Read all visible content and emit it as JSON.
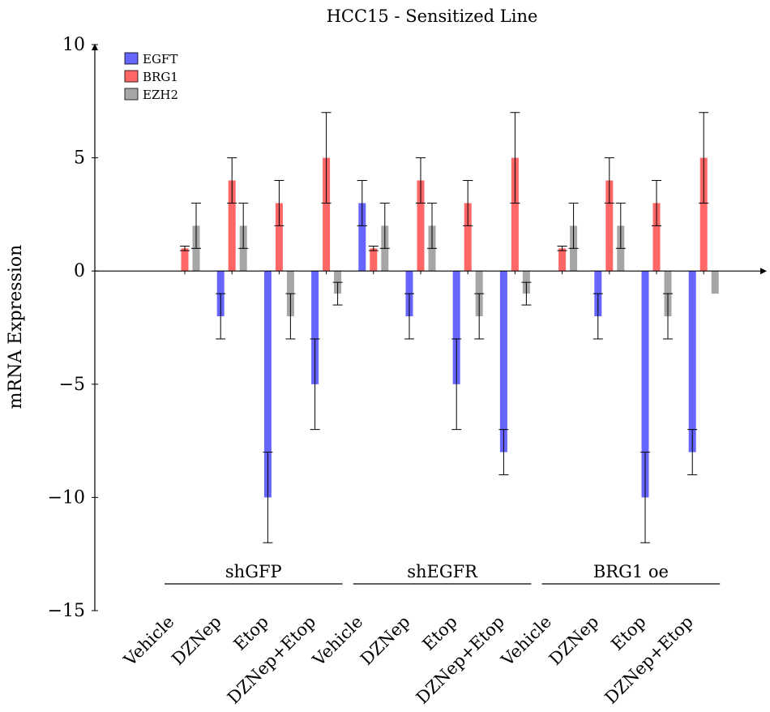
{
  "chart_data": {
    "type": "bar",
    "title": "HCC15 - Sensitized Line",
    "xlabel": "",
    "ylabel": "mRNA Expression",
    "ylim": [
      -15,
      10
    ],
    "yticks": [
      -15,
      -10,
      -5,
      0,
      5,
      10
    ],
    "ytick_labels": [
      "−15",
      "−10",
      "−5",
      "0",
      "5",
      "10"
    ],
    "grid": false,
    "legend_position": "top-left",
    "groups": [
      {
        "label": "shGFP",
        "categories": [
          "Vehicle",
          "DZNep",
          "Etop",
          "DZNep+Etop"
        ]
      },
      {
        "label": "shEGFR",
        "categories": [
          "Vehicle",
          "DZNep",
          "Etop",
          "DZNep+Etop"
        ]
      },
      {
        "label": "BRG1 oe",
        "categories": [
          "Vehicle",
          "DZNep",
          "Etop",
          "DZNep+Etop"
        ]
      }
    ],
    "categories": [
      "Vehicle",
      "DZNep",
      "Etop",
      "DZNep+Etop",
      "Vehicle",
      "DZNep",
      "Etop",
      "DZNep+Etop",
      "Vehicle",
      "DZNep",
      "Etop",
      "DZNep+Etop"
    ],
    "series": [
      {
        "name": "EGFT",
        "color": "#6666ff",
        "values": [
          0,
          -2,
          -10,
          -5,
          3,
          -2,
          -5,
          -8,
          0,
          -2,
          -10,
          -8
        ],
        "error_low": [
          0,
          -3,
          -12,
          -7,
          2,
          -3,
          -7,
          -9,
          0,
          -3,
          -12,
          -9
        ],
        "error_high": [
          0,
          -1,
          -8,
          -3,
          4,
          -1,
          -3,
          -7,
          0,
          -1,
          -8,
          -7
        ]
      },
      {
        "name": "BRG1",
        "color": "#ff6666",
        "values": [
          1,
          4,
          3,
          5,
          1,
          4,
          3,
          5,
          1,
          4,
          3,
          5
        ],
        "error_low": [
          0.9,
          3,
          2,
          3,
          0.9,
          3,
          2,
          3,
          0.9,
          3,
          2,
          3
        ],
        "error_high": [
          1.1,
          5,
          4,
          7,
          1.1,
          5,
          4,
          7,
          1.1,
          5,
          4,
          7
        ]
      },
      {
        "name": "EZH2",
        "color": "#a6a6a6",
        "values": [
          2,
          2,
          -2,
          -1,
          2,
          2,
          -2,
          -1,
          2,
          2,
          -2,
          -1
        ],
        "error_low": [
          1,
          1,
          -3,
          -1.5,
          1,
          1,
          -3,
          -1.5,
          1,
          1,
          -3,
          -1
        ],
        "error_high": [
          3,
          3,
          -1,
          -0.5,
          3,
          3,
          -1,
          -0.5,
          3,
          3,
          -1,
          -1
        ]
      }
    ]
  }
}
